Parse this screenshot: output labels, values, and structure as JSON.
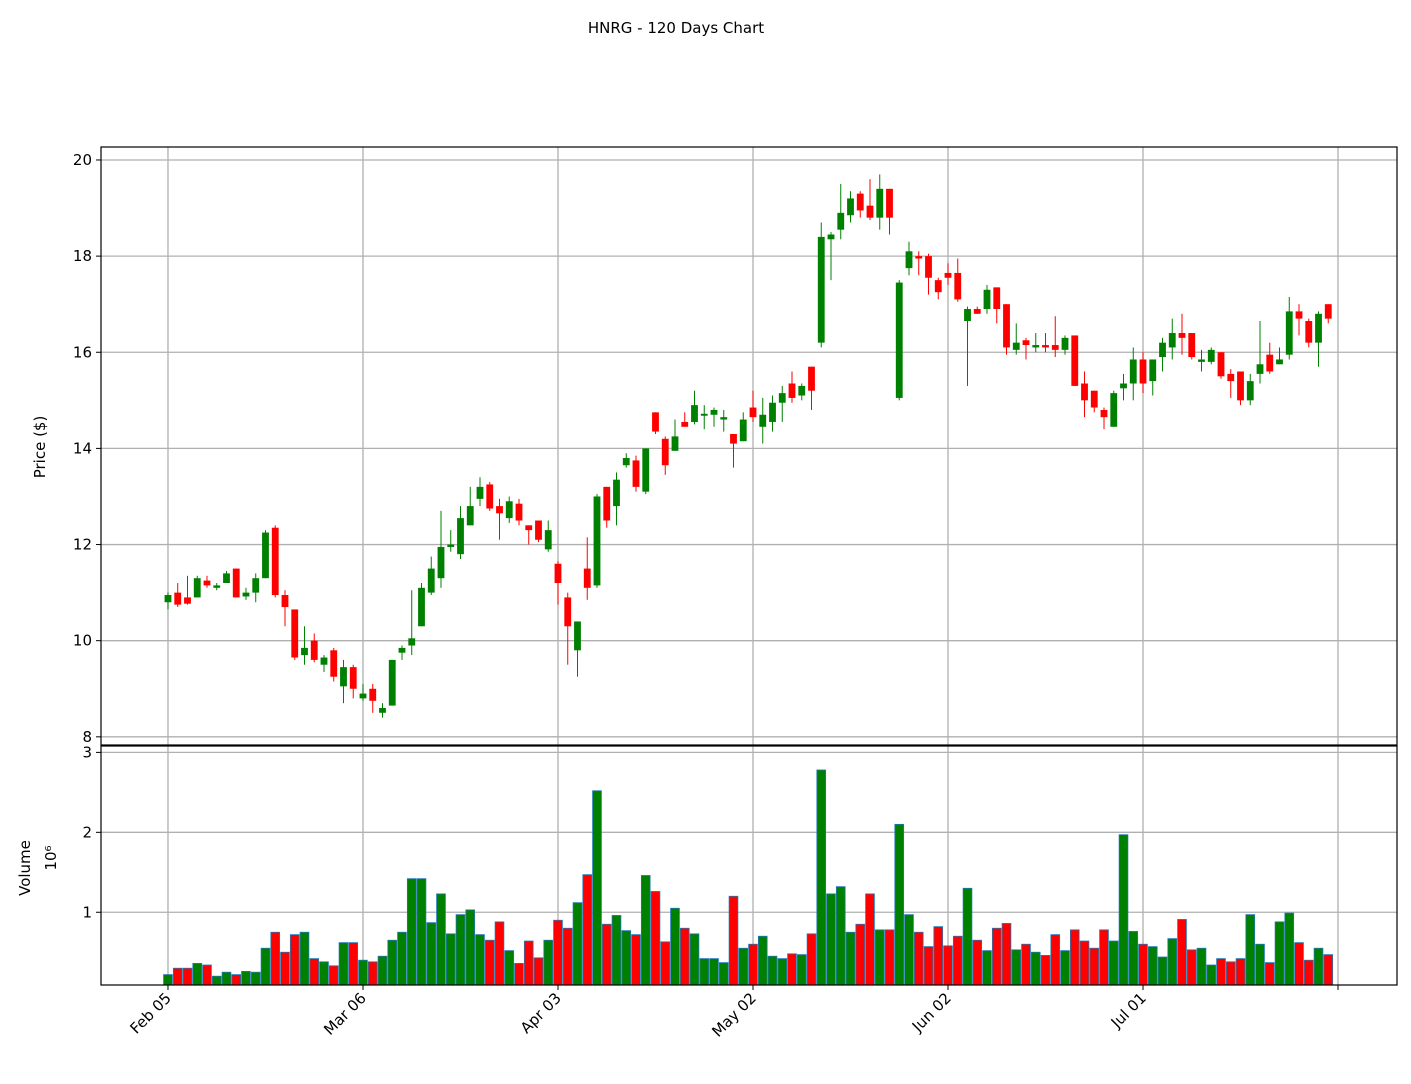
{
  "chart_data": {
    "type": "candlestick",
    "title": "HNRG - 120 Days Chart",
    "ylabel": "Price ($)",
    "volume_label": "Volume",
    "volume_scale": "10⁶",
    "up_color": "#008000",
    "down_color": "#ff0000",
    "volume_edge_color": "#1f77b4",
    "grid": true,
    "xlim": [
      -6.87,
      126.05
    ],
    "xticks": [
      {
        "value": 0,
        "label": "Feb 05"
      },
      {
        "value": 20,
        "label": "Mar 06"
      },
      {
        "value": 40,
        "label": "Apr 03"
      },
      {
        "value": 60,
        "label": "May 02"
      },
      {
        "value": 80,
        "label": "Jun 02"
      },
      {
        "value": 100,
        "label": "Jul 01"
      },
      {
        "value": 120,
        "label": null
      }
    ],
    "ylim": [
      7.83,
      20.27
    ],
    "yticks": [
      8,
      10,
      12,
      14,
      16,
      18,
      20
    ],
    "volume_ylim": [
      0.09,
      3.08
    ],
    "volume_yticks": [
      1,
      2,
      3
    ],
    "open": [
      10.8,
      11.0,
      10.9,
      10.9,
      11.25,
      11.1,
      11.2,
      11.5,
      10.92,
      11.0,
      11.3,
      12.35,
      10.95,
      10.65,
      9.7,
      10.0,
      9.5,
      9.8,
      9.05,
      9.45,
      8.8,
      9.0,
      8.5,
      8.65,
      9.75,
      9.9,
      10.3,
      11.0,
      11.3,
      11.95,
      11.8,
      12.4,
      12.95,
      13.25,
      12.8,
      12.55,
      12.85,
      12.4,
      12.5,
      11.9,
      11.6,
      10.9,
      9.8,
      11.5,
      11.15,
      13.2,
      12.8,
      13.65,
      13.75,
      13.1,
      14.75,
      14.2,
      13.95,
      14.55,
      14.55,
      14.68,
      14.7,
      14.6,
      14.3,
      14.15,
      14.85,
      14.45,
      14.55,
      14.95,
      15.35,
      15.1,
      15.7,
      16.2,
      18.35,
      18.55,
      18.85,
      19.3,
      19.05,
      18.8,
      19.4,
      15.05,
      17.75,
      18.0,
      18.0,
      17.5,
      17.65,
      17.65,
      16.65,
      16.9,
      16.9,
      17.35,
      17.0,
      16.05,
      16.25,
      16.1,
      16.15,
      16.15,
      16.05,
      16.35,
      15.35,
      15.2,
      14.8,
      14.45,
      15.25,
      15.35,
      15.85,
      15.4,
      15.9,
      16.1,
      16.4,
      16.4,
      15.8,
      15.8,
      16.0,
      15.55,
      15.6,
      15.0,
      15.55,
      15.95,
      15.75,
      15.95,
      16.85,
      16.65,
      16.2,
      17.0
    ],
    "high": [
      11.0,
      11.2,
      11.35,
      11.35,
      11.35,
      11.2,
      11.45,
      11.5,
      11.1,
      11.4,
      12.3,
      12.4,
      11.05,
      10.65,
      10.3,
      10.15,
      9.7,
      9.85,
      9.6,
      9.5,
      9.1,
      9.1,
      8.7,
      9.6,
      9.9,
      11.05,
      11.2,
      11.75,
      12.7,
      12.3,
      12.8,
      13.2,
      13.4,
      13.3,
      12.95,
      13.0,
      12.95,
      12.4,
      12.5,
      12.5,
      11.65,
      11.0,
      10.4,
      12.15,
      13.05,
      13.2,
      13.5,
      13.9,
      13.85,
      14.0,
      14.75,
      14.25,
      14.6,
      14.75,
      15.2,
      14.9,
      14.85,
      14.8,
      14.3,
      14.75,
      15.2,
      15.05,
      15.1,
      15.3,
      15.6,
      15.35,
      15.7,
      18.7,
      18.5,
      19.5,
      19.35,
      19.35,
      19.6,
      19.7,
      19.4,
      17.5,
      18.3,
      18.1,
      18.05,
      17.55,
      17.85,
      17.95,
      16.95,
      16.95,
      17.4,
      17.35,
      17.0,
      16.6,
      16.3,
      16.4,
      16.4,
      16.75,
      16.35,
      16.35,
      15.6,
      15.2,
      14.85,
      15.2,
      15.55,
      16.1,
      16.0,
      15.85,
      16.3,
      16.7,
      16.8,
      16.4,
      16.05,
      16.1,
      16.0,
      15.65,
      15.6,
      15.55,
      16.65,
      16.2,
      16.1,
      17.15,
      17.0,
      16.7,
      16.85,
      17.0
    ],
    "low": [
      10.65,
      10.7,
      10.75,
      10.9,
      11.1,
      11.05,
      11.2,
      10.9,
      10.85,
      10.8,
      11.3,
      10.9,
      10.3,
      9.6,
      9.5,
      9.55,
      9.35,
      9.15,
      8.7,
      8.8,
      8.75,
      8.5,
      8.4,
      8.65,
      9.6,
      9.7,
      10.3,
      10.95,
      11.1,
      11.85,
      11.7,
      12.4,
      12.8,
      12.7,
      12.1,
      12.45,
      12.4,
      12.0,
      12.05,
      11.85,
      10.75,
      9.5,
      9.25,
      10.85,
      11.1,
      12.35,
      12.4,
      13.6,
      13.1,
      13.05,
      14.3,
      13.45,
      13.95,
      14.45,
      14.5,
      14.4,
      14.45,
      14.35,
      13.6,
      14.15,
      14.55,
      14.1,
      14.35,
      14.55,
      14.95,
      15.0,
      14.8,
      16.1,
      17.5,
      18.35,
      18.7,
      18.8,
      18.75,
      18.55,
      18.45,
      15.0,
      17.6,
      17.6,
      17.2,
      17.1,
      17.4,
      17.05,
      15.3,
      16.8,
      16.8,
      16.6,
      15.95,
      15.95,
      15.85,
      16.0,
      16.0,
      15.9,
      15.95,
      15.3,
      14.65,
      14.75,
      14.4,
      14.45,
      15.0,
      15.0,
      15.15,
      15.1,
      15.6,
      15.85,
      15.95,
      15.85,
      15.6,
      15.75,
      15.45,
      15.05,
      14.9,
      14.9,
      15.35,
      15.55,
      15.75,
      15.85,
      16.35,
      16.1,
      15.7,
      16.6
    ],
    "close": [
      10.95,
      10.75,
      10.77,
      11.3,
      11.15,
      11.15,
      11.4,
      10.9,
      11.0,
      11.3,
      12.25,
      10.95,
      10.7,
      9.65,
      9.85,
      9.6,
      9.65,
      9.25,
      9.45,
      9.0,
      8.9,
      8.75,
      8.6,
      9.6,
      9.85,
      10.05,
      11.1,
      11.5,
      11.95,
      12.0,
      12.55,
      12.8,
      13.2,
      12.75,
      12.65,
      12.9,
      12.5,
      12.3,
      12.1,
      12.3,
      11.2,
      10.3,
      10.4,
      11.1,
      13.0,
      12.5,
      13.35,
      13.8,
      13.2,
      14.0,
      14.35,
      13.65,
      14.25,
      14.45,
      14.9,
      14.72,
      14.8,
      14.65,
      14.1,
      14.6,
      14.65,
      14.7,
      14.95,
      15.15,
      15.05,
      15.3,
      15.2,
      18.4,
      18.45,
      18.9,
      19.2,
      18.95,
      18.8,
      19.4,
      18.8,
      17.45,
      18.1,
      17.95,
      17.55,
      17.25,
      17.55,
      17.1,
      16.9,
      16.8,
      17.3,
      16.9,
      16.1,
      16.2,
      16.15,
      16.15,
      16.1,
      16.05,
      16.3,
      15.3,
      15.0,
      14.85,
      14.65,
      15.15,
      15.35,
      15.85,
      15.35,
      15.85,
      16.2,
      16.4,
      16.3,
      15.9,
      15.85,
      16.05,
      15.5,
      15.4,
      15.0,
      15.4,
      15.75,
      15.6,
      15.85,
      16.85,
      16.7,
      16.2,
      16.8,
      16.7
    ],
    "volume": [
      0.22,
      0.3,
      0.3,
      0.36,
      0.34,
      0.2,
      0.25,
      0.22,
      0.26,
      0.25,
      0.55,
      0.75,
      0.5,
      0.72,
      0.75,
      0.42,
      0.38,
      0.33,
      0.62,
      0.62,
      0.4,
      0.38,
      0.45,
      0.65,
      0.75,
      1.42,
      1.42,
      0.87,
      1.23,
      0.73,
      0.97,
      1.03,
      0.72,
      0.65,
      0.88,
      0.52,
      0.36,
      0.64,
      0.43,
      0.65,
      0.9,
      0.8,
      1.12,
      1.47,
      2.52,
      0.85,
      0.96,
      0.77,
      0.72,
      1.46,
      1.26,
      0.63,
      1.05,
      0.8,
      0.73,
      0.42,
      0.42,
      0.37,
      1.2,
      0.55,
      0.6,
      0.7,
      0.45,
      0.42,
      0.48,
      0.47,
      0.73,
      2.78,
      1.23,
      1.32,
      0.75,
      0.85,
      1.23,
      0.78,
      0.78,
      2.1,
      0.97,
      0.75,
      0.57,
      0.82,
      0.58,
      0.7,
      1.3,
      0.65,
      0.52,
      0.8,
      0.86,
      0.53,
      0.6,
      0.5,
      0.46,
      0.72,
      0.52,
      0.78,
      0.64,
      0.55,
      0.78,
      0.64,
      1.97,
      0.76,
      0.6,
      0.57,
      0.44,
      0.67,
      0.91,
      0.53,
      0.55,
      0.34,
      0.42,
      0.38,
      0.42,
      0.97,
      0.6,
      0.37,
      0.88,
      0.99,
      0.62,
      0.4,
      0.55,
      0.47
    ]
  }
}
